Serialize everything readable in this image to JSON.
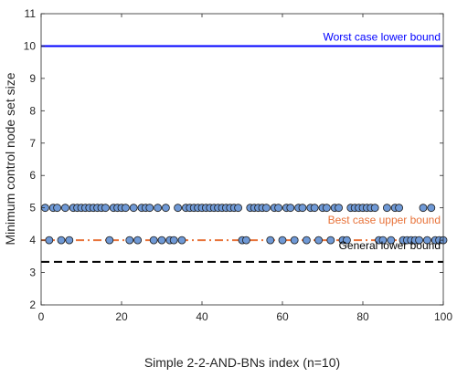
{
  "chart_data": {
    "type": "scatter",
    "title": "",
    "xlabel": "Simple 2-2-AND-BNs index (n=10)",
    "ylabel": "Minimum control node set size",
    "xlim": [
      0,
      100
    ],
    "ylim": [
      2,
      11
    ],
    "xticks": [
      "0",
      "20",
      "40",
      "60",
      "80",
      "100"
    ],
    "yticks": [
      "2",
      "3",
      "4",
      "5",
      "6",
      "7",
      "8",
      "9",
      "10",
      "11"
    ],
    "grid": false,
    "series": [
      {
        "marker": "circle",
        "color": "#6f99d6",
        "edgecolor": "#1a1a1a",
        "x": [
          1,
          2,
          3,
          4,
          5,
          6,
          7,
          8,
          9,
          10,
          11,
          12,
          13,
          14,
          15,
          16,
          17,
          18,
          19,
          20,
          21,
          22,
          23,
          24,
          25,
          26,
          27,
          28,
          29,
          30,
          31,
          32,
          33,
          34,
          35,
          36,
          37,
          38,
          39,
          40,
          41,
          42,
          43,
          44,
          45,
          46,
          47,
          48,
          49,
          50,
          51,
          52,
          53,
          54,
          55,
          56,
          57,
          58,
          59,
          60,
          61,
          62,
          63,
          64,
          65,
          66,
          67,
          68,
          69,
          70,
          71,
          72,
          73,
          74,
          75,
          76,
          77,
          78,
          79,
          80,
          81,
          82,
          83,
          84,
          85,
          86,
          87,
          88,
          89,
          90,
          91,
          92,
          93,
          94,
          95,
          96,
          97,
          98,
          99,
          100
        ],
        "y": [
          5,
          4,
          5,
          5,
          4,
          5,
          4,
          5,
          5,
          5,
          5,
          5,
          5,
          5,
          5,
          5,
          4,
          5,
          5,
          5,
          5,
          4,
          5,
          4,
          5,
          5,
          5,
          4,
          5,
          4,
          5,
          4,
          4,
          5,
          4,
          5,
          5,
          5,
          5,
          5,
          5,
          5,
          5,
          5,
          5,
          5,
          5,
          5,
          5,
          4,
          4,
          5,
          5,
          5,
          5,
          5,
          4,
          5,
          5,
          4,
          5,
          5,
          4,
          5,
          5,
          4,
          5,
          5,
          4,
          5,
          5,
          4,
          5,
          5,
          4,
          4,
          5,
          5,
          5,
          5,
          5,
          5,
          5,
          4,
          4,
          5,
          4,
          5,
          5,
          4,
          4,
          4,
          4,
          4,
          5,
          4,
          5,
          4,
          4,
          4
        ]
      }
    ],
    "reference_lines": [
      {
        "label": "Worst case lower bound",
        "y": 10,
        "color": "#0000ff",
        "style": "solid"
      },
      {
        "label": "Best case upper bound",
        "y": 4,
        "color": "#e8733a",
        "style": "dashdot"
      },
      {
        "label": "General lower bound",
        "y": 3.33,
        "color": "#000000",
        "style": "dashed"
      }
    ]
  }
}
